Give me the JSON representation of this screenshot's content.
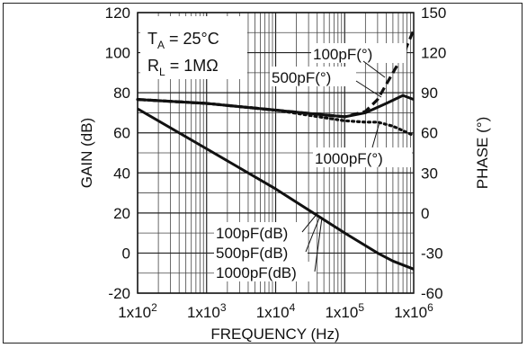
{
  "chart_data": {
    "type": "line",
    "title": "",
    "xlabel": "FREQUENCY (Hz)",
    "ylabel": "GAIN (dB)",
    "y2label": "PHASE (°)",
    "xscale": "log",
    "xlim": [
      100,
      1000000
    ],
    "ylim": [
      -20,
      120
    ],
    "y2lim": [
      -60,
      150
    ],
    "grid": true,
    "x_ticks": [
      {
        "value": 100,
        "base": "1x10",
        "exp": "2"
      },
      {
        "value": 1000,
        "base": "1x10",
        "exp": "3"
      },
      {
        "value": 10000,
        "base": "1x10",
        "exp": "4"
      },
      {
        "value": 100000,
        "base": "1x10",
        "exp": "5"
      },
      {
        "value": 1000000,
        "base": "1x10",
        "exp": "6"
      }
    ],
    "y_ticks": [
      "-20",
      "0",
      "20",
      "40",
      "60",
      "80",
      "100",
      "120"
    ],
    "y2_ticks": [
      "-60",
      "-30",
      "0",
      "30",
      "60",
      "90",
      "120",
      "150"
    ],
    "conditions": {
      "ta_sym": "T",
      "ta_sub": "A",
      "ta_val": " = 25°C",
      "rl_sym": "R",
      "rl_sub": "L",
      "rl_val": " = 1MΩ"
    },
    "annotations": {
      "phase_100": "100pF(°)",
      "phase_500": "500pF(°)",
      "phase_1000": "1000pF(°)",
      "gain_100": "100pF(dB)",
      "gain_500": "500pF(dB)",
      "gain_1000": "1000pF(dB)"
    },
    "series": [
      {
        "axis": "gain",
        "style": "solid",
        "x": [
          100,
          1000,
          10000,
          100000,
          300000,
          500000,
          1000000
        ],
        "y": [
          72,
          52,
          32,
          10,
          0,
          -4,
          -8
        ]
      },
      {
        "axis": "phase",
        "style": "dotted",
        "x": [
          100,
          1000,
          10000,
          100000,
          200000,
          300000,
          500000,
          1000000
        ],
        "y": [
          85,
          82,
          77,
          69,
          68,
          68,
          65,
          58
        ]
      },
      {
        "axis": "phase",
        "style": "solid",
        "x": [
          100,
          1000,
          10000,
          100000,
          200000,
          400000,
          700000,
          1000000
        ],
        "y": [
          85,
          82,
          77,
          72,
          75,
          82,
          88,
          85
        ]
      },
      {
        "axis": "phase",
        "style": "dashed",
        "x": [
          100,
          1000,
          10000,
          100000,
          200000,
          300000,
          500000,
          700000,
          1000000
        ],
        "y": [
          85,
          82,
          77,
          72,
          76,
          85,
          105,
          118,
          137
        ]
      }
    ]
  }
}
